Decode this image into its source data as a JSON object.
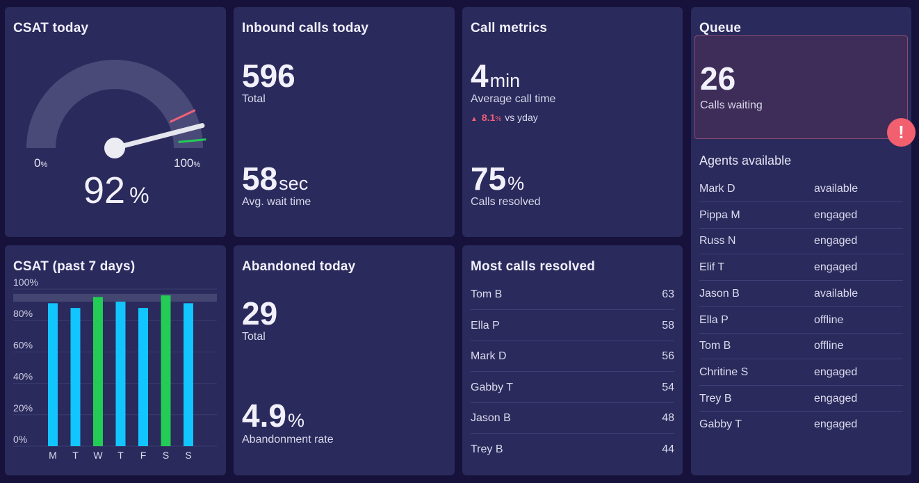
{
  "csat_today": {
    "title": "CSAT today",
    "value": "92",
    "unit": "%",
    "min_label": "0",
    "max_label": "100",
    "pct": "%",
    "gauge_fraction": 0.92
  },
  "inbound": {
    "title": "Inbound calls today",
    "total_value": "596",
    "total_label": "Total",
    "wait_value": "58",
    "wait_unit": "sec",
    "wait_label": "Avg. wait time"
  },
  "call_metrics": {
    "title": "Call metrics",
    "avg_value": "4",
    "avg_unit": "min",
    "avg_label": "Average call time",
    "trend_value": "8.1",
    "trend_unit": "%",
    "trend_label": "vs yday",
    "resolved_value": "75",
    "resolved_unit": "%",
    "resolved_label": "Calls resolved"
  },
  "queue": {
    "title": "Queue",
    "waiting_value": "26",
    "waiting_label": "Calls waiting",
    "alert_glyph": "!",
    "agents_title": "Agents available",
    "agents": [
      {
        "name": "Mark D",
        "status": "available"
      },
      {
        "name": "Pippa M",
        "status": "engaged"
      },
      {
        "name": "Russ N",
        "status": "engaged"
      },
      {
        "name": "Elif T",
        "status": "engaged"
      },
      {
        "name": "Jason B",
        "status": "available"
      },
      {
        "name": "Ella P",
        "status": "offline"
      },
      {
        "name": "Tom B",
        "status": "offline"
      },
      {
        "name": "Chritine S",
        "status": "engaged"
      },
      {
        "name": "Trey B",
        "status": "engaged"
      },
      {
        "name": "Gabby T",
        "status": "engaged"
      }
    ]
  },
  "csat_week": {
    "title": "CSAT (past 7 days)"
  },
  "abandoned": {
    "title": "Abandoned today",
    "total_value": "29",
    "total_label": "Total",
    "rate_value": "4.9",
    "rate_unit": "%",
    "rate_label": "Abandonment rate"
  },
  "most_resolved": {
    "title": "Most calls resolved",
    "rows": [
      {
        "name": "Tom B",
        "count": "63"
      },
      {
        "name": "Ella P",
        "count": "58"
      },
      {
        "name": "Mark D",
        "count": "56"
      },
      {
        "name": "Gabby T",
        "count": "54"
      },
      {
        "name": "Jason B",
        "count": "48"
      },
      {
        "name": "Trey B",
        "count": "44"
      }
    ]
  },
  "chart_data": {
    "type": "bar",
    "title": "CSAT (past 7 days)",
    "categories": [
      "M",
      "T",
      "W",
      "T",
      "F",
      "S",
      "S"
    ],
    "values": [
      91,
      88,
      95,
      92,
      88,
      96,
      91
    ],
    "highlight": [
      false,
      false,
      true,
      false,
      false,
      true,
      false
    ],
    "ylim": [
      0,
      100
    ],
    "yticks": [
      "0%",
      "20%",
      "40%",
      "60%",
      "80%",
      "100%"
    ],
    "target_band": [
      92,
      97
    ],
    "colors": {
      "normal": "#12c5ff",
      "highlight": "#22cc55",
      "band": "#424670"
    }
  },
  "colors": {
    "background": "#16123b",
    "panel": "#2a2a5c",
    "accent_red": "#f26078",
    "accent_green": "#22cc55",
    "accent_blue": "#12c5ff"
  }
}
